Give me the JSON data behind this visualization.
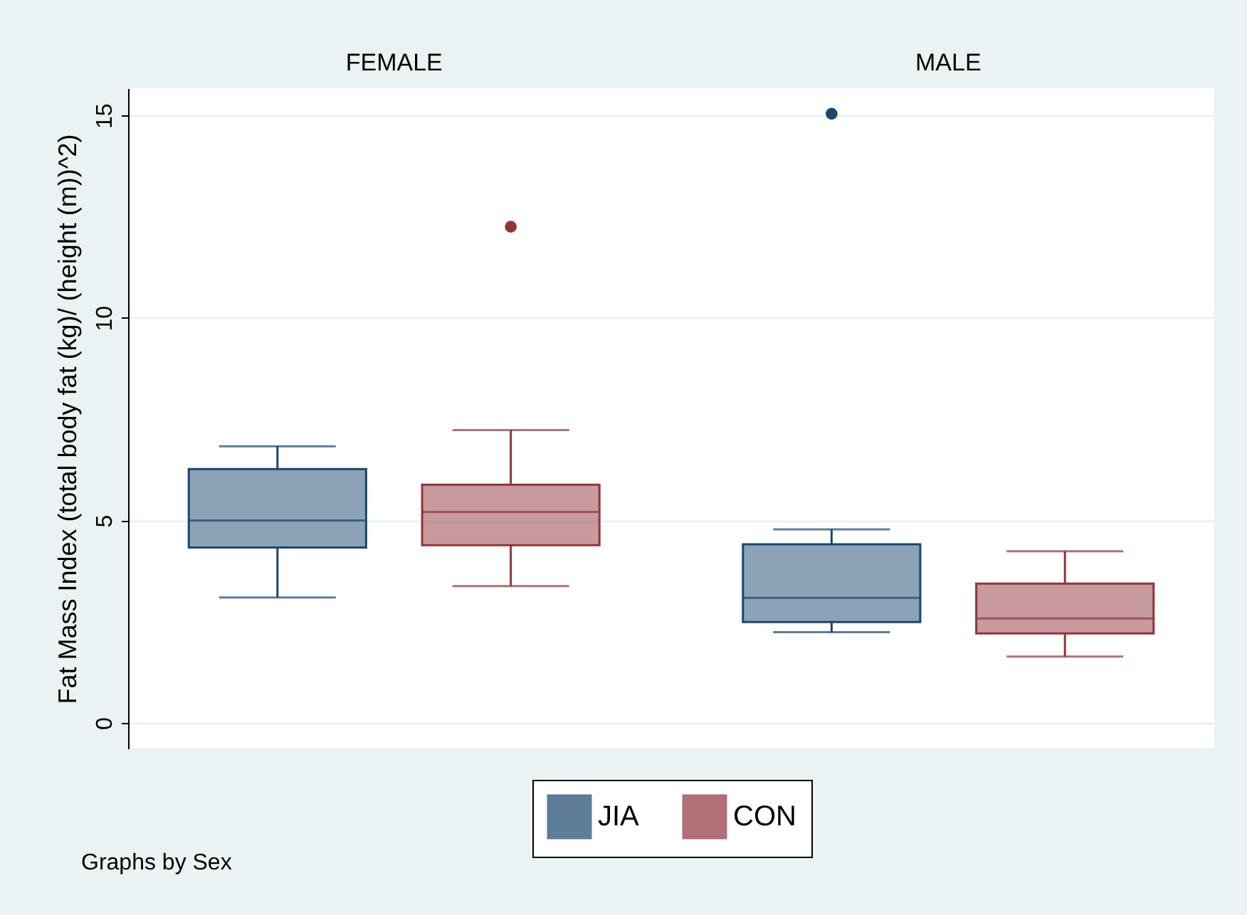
{
  "chart_data": {
    "type": "box",
    "ylabel": "Fat Mass Index (total body fat (kg)/ (height (m))^2)",
    "categories": [
      "FEMALE",
      "MALE"
    ],
    "ylim": [
      -0.63,
      15.67
    ],
    "yticks": [
      0,
      5,
      10,
      15
    ],
    "grid": "y",
    "legend": "bottom",
    "annotations": [
      "Graphs by Sex"
    ],
    "series": [
      {
        "name": "JIA",
        "color": "#1a476f",
        "boxes": [
          {
            "low": 3.1,
            "q1": 4.33,
            "median": 5.0,
            "q3": 6.27,
            "high": 6.83
          },
          {
            "low": 2.24,
            "q1": 2.49,
            "median": 3.09,
            "q3": 4.41,
            "high": 4.78,
            "outliers": [
              15.04
            ]
          }
        ]
      },
      {
        "name": "CON",
        "color": "#90353b",
        "boxes": [
          {
            "low": 3.38,
            "q1": 4.39,
            "median": 5.21,
            "q3": 5.88,
            "high": 7.23,
            "outliers": [
              12.25
            ]
          },
          {
            "low": 1.64,
            "q1": 2.21,
            "median": 2.58,
            "q3": 3.44,
            "high": 4.24
          }
        ]
      }
    ]
  }
}
